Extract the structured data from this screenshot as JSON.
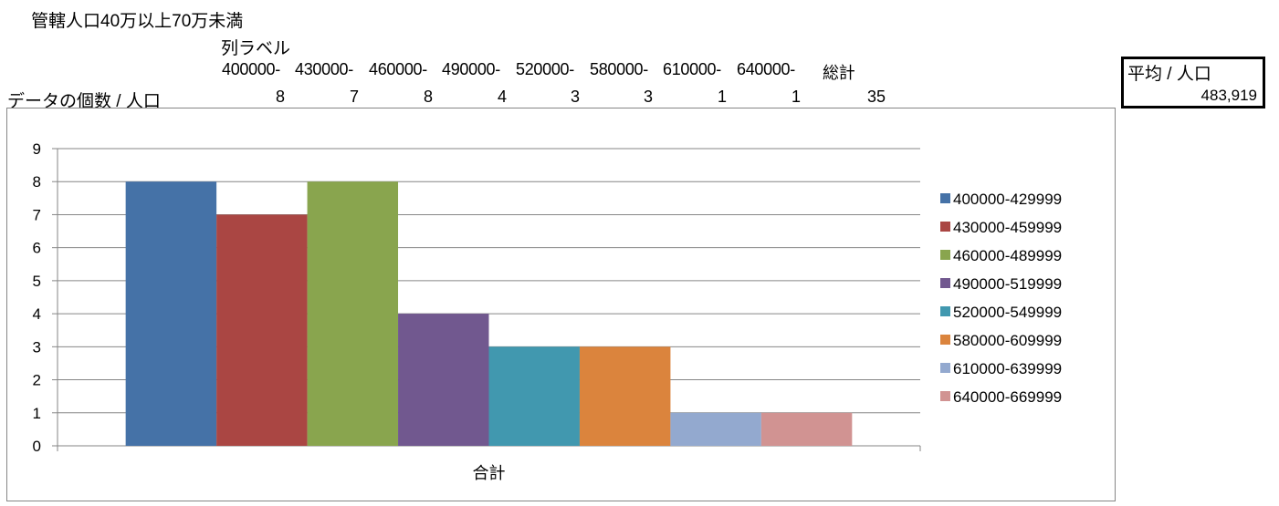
{
  "pivot": {
    "title": "管轄人口40万以上70万未満",
    "column_label": "列ラベル",
    "column_headers": [
      "400000-",
      "430000-",
      "460000-",
      "490000-",
      "520000-",
      "580000-",
      "610000-",
      "640000-",
      "総計"
    ],
    "row_label": "データの個数 / 人口",
    "row_values": [
      "8",
      "7",
      "8",
      "4",
      "3",
      "3",
      "1",
      "1",
      "35"
    ]
  },
  "average": {
    "label": "平均 / 人口",
    "value": "483,919"
  },
  "chart_data": {
    "type": "bar",
    "categories": [
      "合計"
    ],
    "xlabel": "",
    "ylabel": "",
    "ylim": [
      0,
      9
    ],
    "yticks": [
      "0",
      "1",
      "2",
      "3",
      "4",
      "5",
      "6",
      "7",
      "8",
      "9"
    ],
    "grid": true,
    "legend_position": "right",
    "series": [
      {
        "name": "400000-429999",
        "values": [
          8
        ],
        "color": "#4572A7"
      },
      {
        "name": "430000-459999",
        "values": [
          7
        ],
        "color": "#AA4643"
      },
      {
        "name": "460000-489999",
        "values": [
          8
        ],
        "color": "#89A54E"
      },
      {
        "name": "490000-519999",
        "values": [
          4
        ],
        "color": "#71588F"
      },
      {
        "name": "520000-549999",
        "values": [
          3
        ],
        "color": "#4198AF"
      },
      {
        "name": "580000-609999",
        "values": [
          3
        ],
        "color": "#DB843D"
      },
      {
        "name": "610000-639999",
        "values": [
          1
        ],
        "color": "#93A9CF"
      },
      {
        "name": "640000-669999",
        "values": [
          1
        ],
        "color": "#D19392"
      }
    ]
  }
}
